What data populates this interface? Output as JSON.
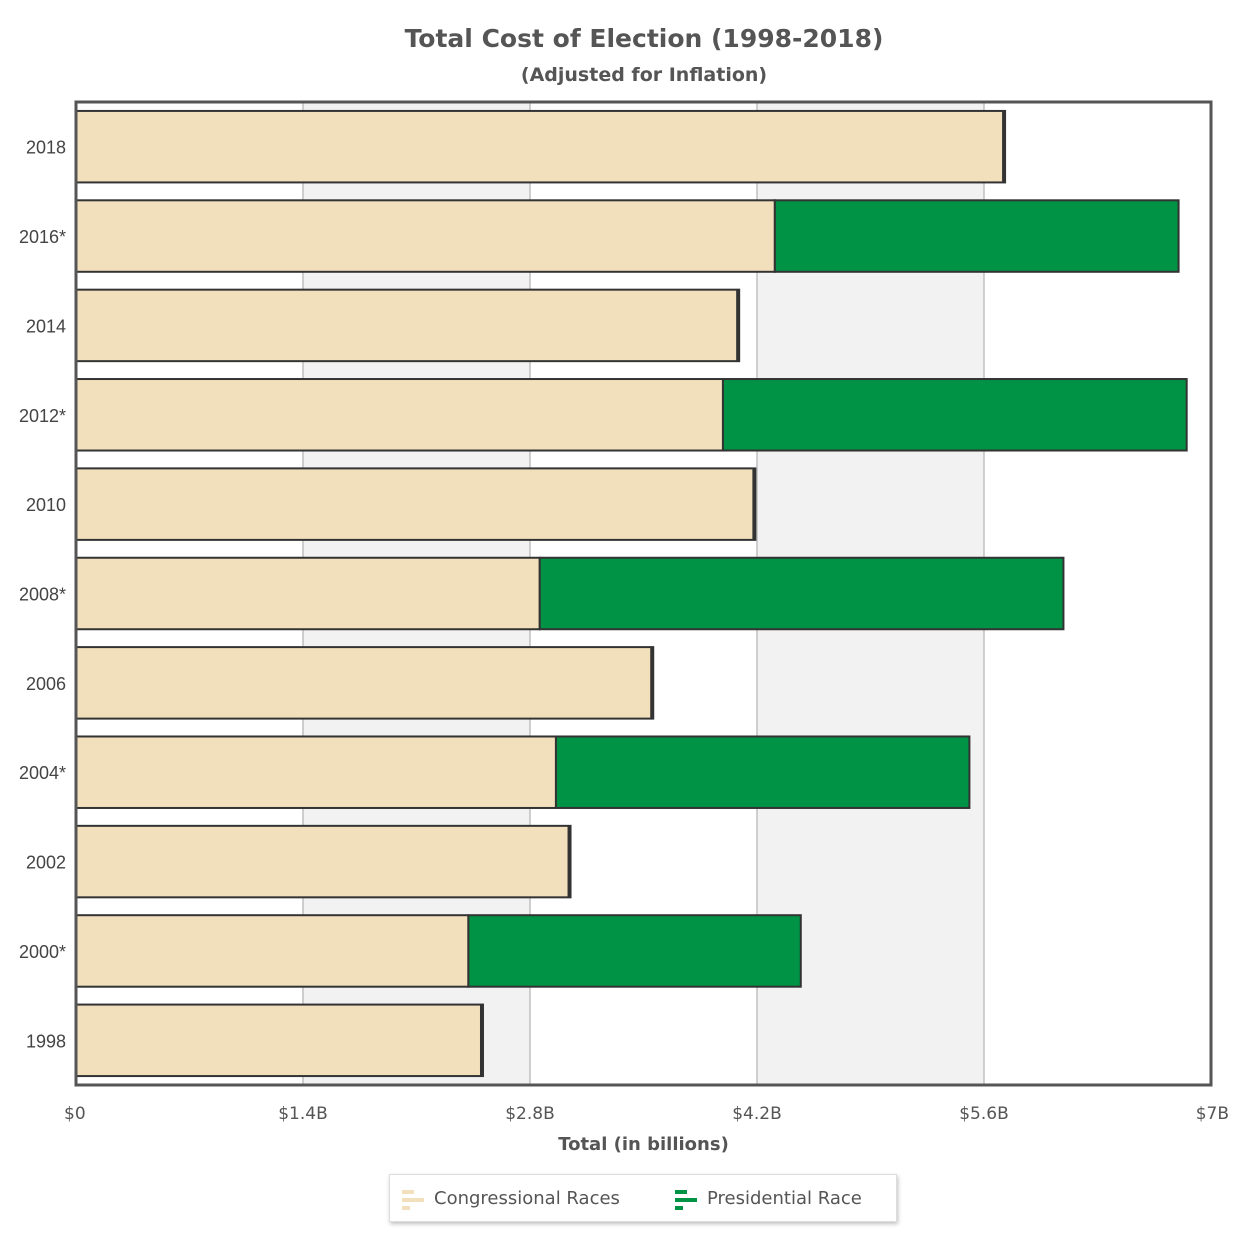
{
  "chart_data": {
    "type": "bar",
    "orientation": "horizontal",
    "stacked": true,
    "title": "Total Cost of Election (1998-2018)",
    "subtitle": "(Adjusted for Inflation)",
    "xlabel": "Total (in billions)",
    "ylabel": "",
    "categories": [
      "2018",
      "2016*",
      "2014",
      "2012*",
      "2010",
      "2008*",
      "2006",
      "2004*",
      "2002",
      "2000*",
      "1998"
    ],
    "series": [
      {
        "name": "Congressional Races",
        "color": "#f2e0bd",
        "values": [
          5.73,
          4.31,
          4.09,
          3.99,
          4.19,
          2.86,
          3.56,
          2.96,
          3.05,
          2.42,
          2.51
        ]
      },
      {
        "name": "Presidential Race",
        "color": "#009245",
        "values": [
          0,
          2.49,
          0,
          2.86,
          0,
          3.23,
          0,
          2.55,
          0,
          2.05,
          0
        ]
      }
    ],
    "xlim": [
      0,
      7
    ],
    "xticks": [
      0,
      1.4,
      2.8,
      4.2,
      5.6,
      7
    ],
    "xtick_labels": [
      "$0",
      "$1.4B",
      "$2.8B",
      "$4.2B",
      "$5.6B",
      "$7B"
    ],
    "grid": "alternating vertical bands",
    "legend_position": "bottom"
  },
  "legend": {
    "items": [
      {
        "label": "Congressional Races",
        "color": "#f2e0bd"
      },
      {
        "label": "Presidential Race",
        "color": "#009245"
      }
    ]
  },
  "colors": {
    "band": "#f2f2f2",
    "frame": "#555555",
    "gridline": "#c0c0c0",
    "bar_stroke": "#333333"
  }
}
